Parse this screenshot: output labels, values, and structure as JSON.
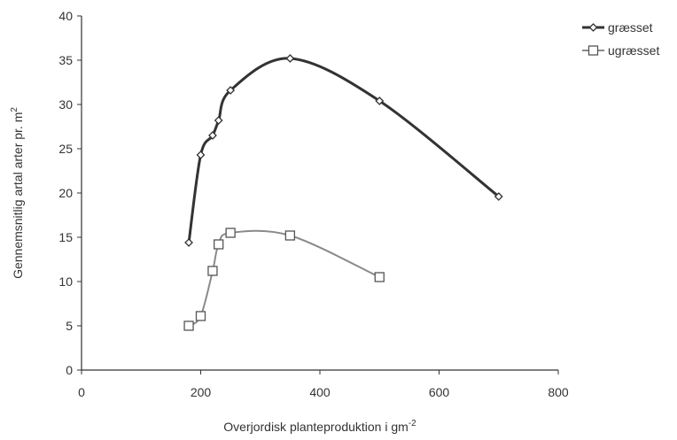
{
  "chart_data": {
    "type": "line",
    "xlabel": "Overjordisk planteproduktion i gm",
    "xlabel_sup": "-2",
    "ylabel": "Gennemsnitlig artal arter pr. m",
    "ylabel_sup": "2",
    "xlim": [
      0,
      800
    ],
    "ylim": [
      0,
      40
    ],
    "xticks": [
      0,
      200,
      400,
      600,
      800
    ],
    "yticks": [
      0,
      5,
      10,
      15,
      20,
      25,
      30,
      35,
      40
    ],
    "xtick_labels": [
      "0",
      "200",
      "400",
      "600",
      "800"
    ],
    "ytick_labels": [
      "0",
      "5",
      "10",
      "15",
      "20",
      "25",
      "30",
      "35",
      "40"
    ],
    "grid": false,
    "legend_position": "top-right",
    "series": [
      {
        "name": "græsset",
        "marker": "diamond",
        "color": "#333333",
        "x": [
          180,
          200,
          220,
          230,
          250,
          350,
          500,
          700
        ],
        "y": [
          14.4,
          24.3,
          26.5,
          28.2,
          31.6,
          35.2,
          30.4,
          19.6
        ]
      },
      {
        "name": "ugræsset",
        "marker": "square",
        "color": "#8a8a8a",
        "x": [
          180,
          200,
          220,
          230,
          250,
          350,
          500
        ],
        "y": [
          5.0,
          6.1,
          11.2,
          14.2,
          15.5,
          15.2,
          10.5
        ]
      }
    ]
  }
}
